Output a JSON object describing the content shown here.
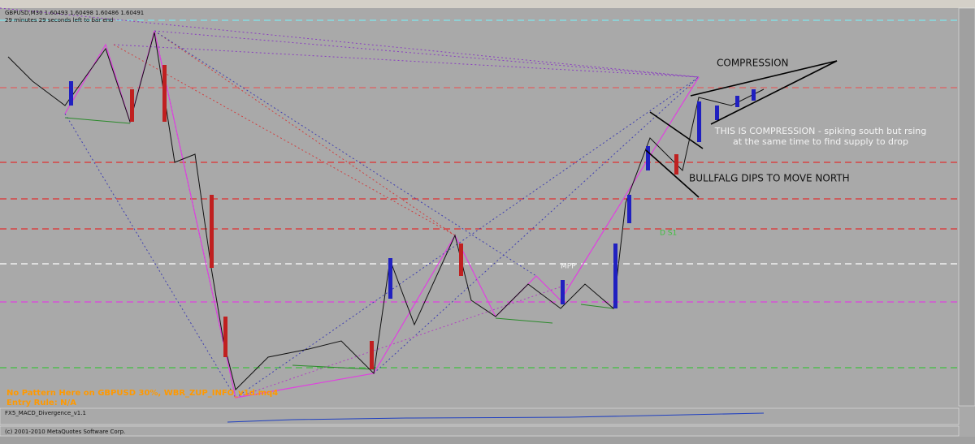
{
  "header": {
    "symbol_line": "GBPUSD,M30  1.60493 1.60498 1.60486 1.60491",
    "timer": "29 minutes 29 seconds left to bar end"
  },
  "annotations": {
    "compression": "COMPRESSION",
    "compression_note": [
      "THIS IS COMPRESSION - spiking south but rsing",
      "at the same time to find supply to drop"
    ],
    "bullflag": "BULLFALG DIPS TO MOVE NORTH",
    "mpp": "MPP",
    "ds1": "D S1"
  },
  "info": {
    "pattern_line": "No Pattern Here on GBPUSD 30%, WBR_ZUP_INFO_v1d.mq4",
    "entry_line": "Entry Rule: N/A"
  },
  "indicator": {
    "name": "FX5_MACD_Divergence_v1.1"
  },
  "footer": {
    "copyright": "(c) 2001-2010 MetaQuotes Software Corp."
  }
}
